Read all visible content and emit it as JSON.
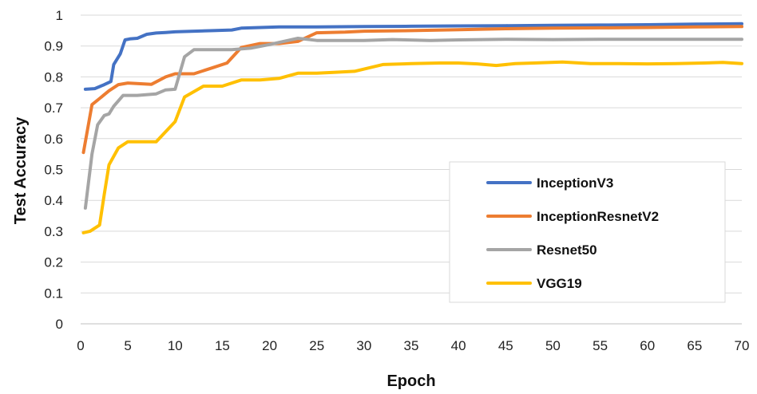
{
  "chart_data": {
    "type": "line",
    "title": "",
    "xlabel": "Epoch",
    "ylabel": "Test Accuracy",
    "xlim": [
      0,
      70
    ],
    "ylim": [
      0,
      1
    ],
    "x_ticks": [
      0,
      5,
      10,
      15,
      20,
      25,
      30,
      35,
      40,
      45,
      50,
      55,
      60,
      65,
      70
    ],
    "y_ticks": [
      0,
      0.1,
      0.2,
      0.3,
      0.4,
      0.5,
      0.6,
      0.7,
      0.8,
      0.9,
      1
    ],
    "y_tick_labels": [
      "0",
      "0.1",
      "0.2",
      "0.3",
      "0.4",
      "0.5",
      "0.6",
      "0.7",
      "0.8",
      "0.9",
      "1"
    ],
    "grid": "horizontal",
    "legend_position": "right",
    "series": [
      {
        "name": "InceptionV3",
        "color": "#4472C4",
        "x": [
          0.5,
          1.5,
          2.5,
          3.2,
          3.5,
          4.2,
          4.7,
          5.2,
          6,
          7,
          8,
          9,
          10,
          12,
          14,
          16,
          17,
          19,
          21,
          25,
          30,
          35,
          40,
          45,
          50,
          55,
          60,
          65,
          70
        ],
        "y": [
          0.76,
          0.762,
          0.775,
          0.785,
          0.84,
          0.875,
          0.92,
          0.923,
          0.925,
          0.938,
          0.942,
          0.944,
          0.946,
          0.948,
          0.95,
          0.952,
          0.958,
          0.96,
          0.962,
          0.962,
          0.963,
          0.964,
          0.965,
          0.966,
          0.967,
          0.968,
          0.969,
          0.971,
          0.972
        ]
      },
      {
        "name": "InceptionResnetV2",
        "color": "#ED7D31",
        "x": [
          0.3,
          1.2,
          2,
          3,
          4,
          5,
          7.5,
          9,
          10,
          12,
          14,
          15.5,
          17,
          19,
          21,
          23,
          25,
          28,
          30,
          35,
          40,
          45,
          50,
          55,
          60,
          65,
          70
        ],
        "y": [
          0.555,
          0.71,
          0.73,
          0.755,
          0.775,
          0.78,
          0.776,
          0.8,
          0.81,
          0.81,
          0.83,
          0.845,
          0.895,
          0.908,
          0.908,
          0.915,
          0.943,
          0.945,
          0.948,
          0.95,
          0.953,
          0.956,
          0.958,
          0.959,
          0.96,
          0.962,
          0.963
        ]
      },
      {
        "name": "Resnet50",
        "color": "#A5A5A5",
        "x": [
          0.5,
          1.2,
          1.8,
          2.5,
          3,
          3.5,
          4.5,
          6,
          8,
          9,
          10,
          11,
          12,
          14,
          16,
          18,
          20,
          23,
          25,
          27,
          30,
          33,
          37,
          40,
          45,
          50,
          55,
          60,
          65,
          70
        ],
        "y": [
          0.375,
          0.55,
          0.645,
          0.675,
          0.68,
          0.705,
          0.74,
          0.74,
          0.745,
          0.758,
          0.76,
          0.865,
          0.888,
          0.888,
          0.888,
          0.893,
          0.905,
          0.925,
          0.918,
          0.918,
          0.918,
          0.921,
          0.918,
          0.92,
          0.922,
          0.921,
          0.922,
          0.922,
          0.922,
          0.922
        ]
      },
      {
        "name": "VGG19",
        "color": "#FFC000",
        "x": [
          0.3,
          1,
          2,
          2.5,
          3,
          4,
          5,
          6,
          8,
          10,
          11,
          13,
          15,
          17,
          19,
          21,
          23,
          25,
          27,
          29,
          32,
          35,
          38,
          40,
          42,
          44,
          46,
          48,
          51,
          54,
          57,
          60,
          63,
          66,
          68,
          70
        ],
        "y": [
          0.295,
          0.3,
          0.32,
          0.42,
          0.515,
          0.57,
          0.59,
          0.59,
          0.59,
          0.655,
          0.735,
          0.77,
          0.77,
          0.79,
          0.79,
          0.795,
          0.812,
          0.812,
          0.815,
          0.818,
          0.84,
          0.843,
          0.845,
          0.845,
          0.842,
          0.837,
          0.843,
          0.845,
          0.848,
          0.843,
          0.843,
          0.842,
          0.843,
          0.845,
          0.847,
          0.843
        ]
      }
    ]
  }
}
